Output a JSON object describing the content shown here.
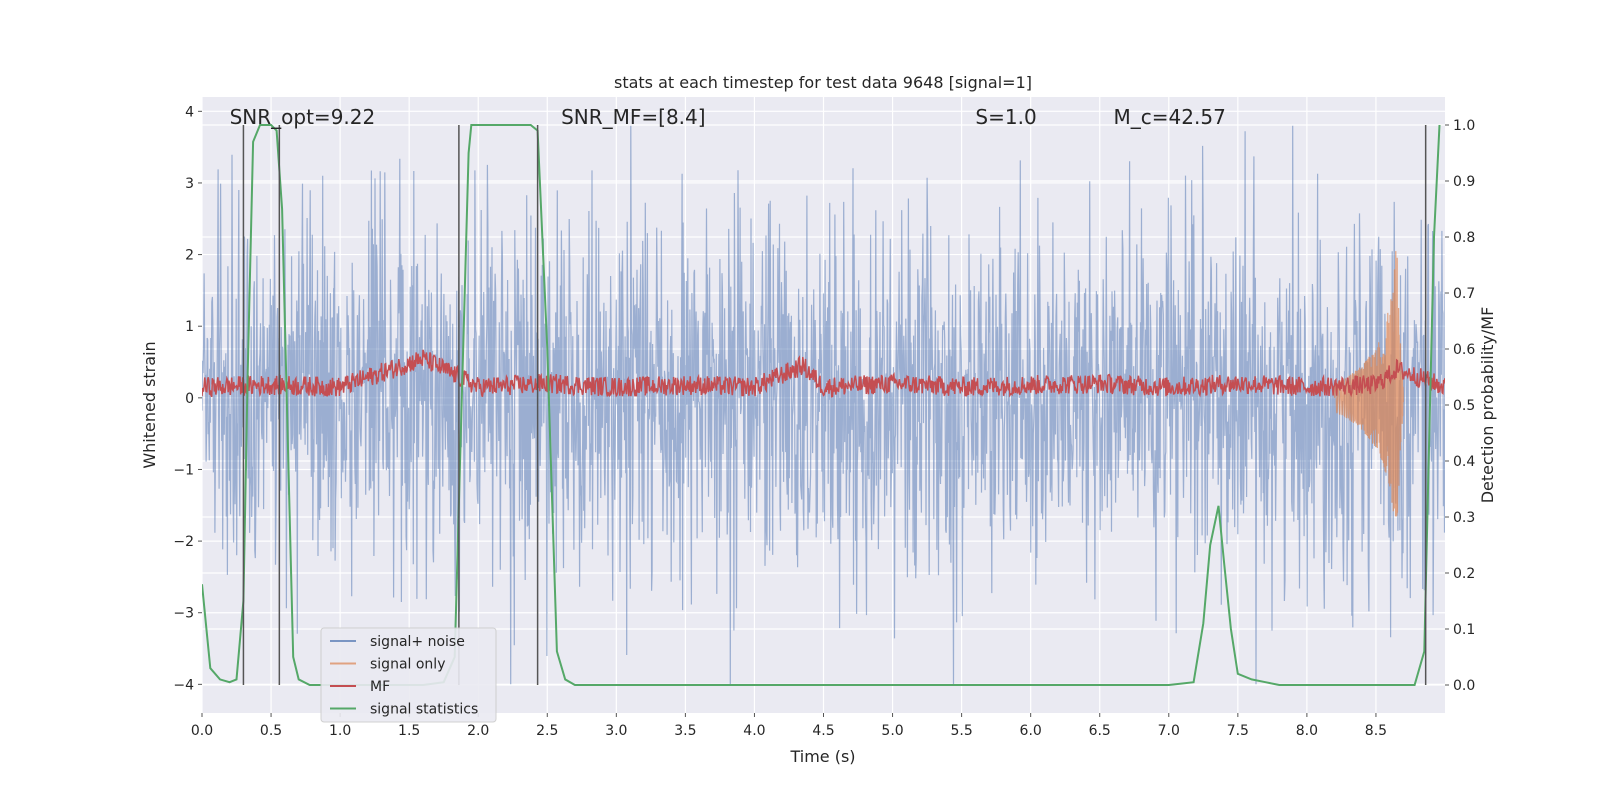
{
  "chart_data": {
    "type": "line",
    "title": "stats at each timestep for test data 9648 [signal=1]",
    "xlabel": "Time (s)",
    "ylabel": "Whitened strain",
    "y2label": "Detection probability/MF",
    "xlim": [
      0.0,
      9.0
    ],
    "ylim": [
      -4.4,
      4.2
    ],
    "y2lim": [
      -0.05,
      1.05
    ],
    "xticks": [
      0.0,
      0.5,
      1.0,
      1.5,
      2.0,
      2.5,
      3.0,
      3.5,
      4.0,
      4.5,
      5.0,
      5.5,
      6.0,
      6.5,
      7.0,
      7.5,
      8.0,
      8.5
    ],
    "xtick_labels": [
      "0.0",
      "0.5",
      "1.0",
      "1.5",
      "2.0",
      "2.5",
      "3.0",
      "3.5",
      "4.0",
      "4.5",
      "5.0",
      "5.5",
      "6.0",
      "6.5",
      "7.0",
      "7.5",
      "8.0",
      "8.5"
    ],
    "yticks": [
      -4,
      -3,
      -2,
      -1,
      0,
      1,
      2,
      3,
      4
    ],
    "ytick_labels": [
      "−4",
      "−3",
      "−2",
      "−1",
      "0",
      "1",
      "2",
      "3",
      "4"
    ],
    "y2ticks": [
      0.0,
      0.1,
      0.2,
      0.3,
      0.4,
      0.5,
      0.6,
      0.7,
      0.8,
      0.9,
      1.0
    ],
    "y2tick_labels": [
      "0.0",
      "0.1",
      "0.2",
      "0.3",
      "0.4",
      "0.5",
      "0.6",
      "0.7",
      "0.8",
      "0.9",
      "1.0"
    ],
    "grid": true,
    "legend_position": "lower-left",
    "annotations": [
      {
        "id": "snr-opt",
        "text": "SNR_opt=9.22",
        "x": 0.2
      },
      {
        "id": "snr-mf",
        "text": "SNR_MF=[8.4]",
        "x": 2.6
      },
      {
        "id": "s-value",
        "text": "S=1.0",
        "x": 5.6
      },
      {
        "id": "mc-value",
        "text": "M_c=42.57",
        "x": 6.6
      }
    ],
    "vertical_lines": [
      0.3,
      0.56,
      1.86,
      2.43,
      8.86
    ],
    "series": [
      {
        "name": "signal+ noise",
        "color": "#4c72b0",
        "description_points": "noise band roughly between -2.5 and 3 whitened strain across all times"
      },
      {
        "name": "signal only",
        "color": "#dd8452",
        "chirp_points": {
          "x": [
            8.2,
            8.3,
            8.4,
            8.5,
            8.55,
            8.6,
            8.63,
            8.65,
            8.67,
            8.7
          ],
          "amplitude": [
            0.2,
            0.3,
            0.45,
            0.7,
            0.9,
            1.3,
            1.7,
            2.2,
            1.0,
            0.1
          ]
        }
      },
      {
        "name": "MF",
        "color": "#c44e52",
        "x": [
          0.0,
          0.5,
          1.0,
          1.6,
          2.0,
          2.5,
          3.0,
          3.5,
          4.0,
          4.35,
          4.5,
          5.0,
          5.5,
          6.0,
          6.5,
          7.0,
          7.5,
          8.0,
          8.5,
          8.65,
          9.0
        ],
        "y": [
          0.15,
          0.18,
          0.15,
          0.55,
          0.15,
          0.2,
          0.15,
          0.18,
          0.15,
          0.45,
          0.15,
          0.2,
          0.15,
          0.18,
          0.2,
          0.15,
          0.2,
          0.15,
          0.18,
          0.4,
          0.15
        ]
      },
      {
        "name": "signal statistics",
        "color": "#55a868",
        "x": [
          0.0,
          0.06,
          0.13,
          0.2,
          0.25,
          0.3,
          0.33,
          0.37,
          0.42,
          0.5,
          0.54,
          0.58,
          0.62,
          0.66,
          0.7,
          0.78,
          0.88,
          1.05,
          1.2,
          1.4,
          1.6,
          1.75,
          1.83,
          1.88,
          1.93,
          1.95,
          2.0,
          2.3,
          2.38,
          2.43,
          2.5,
          2.57,
          2.63,
          2.7,
          2.8,
          3.0,
          4.0,
          5.0,
          6.0,
          7.0,
          7.18,
          7.25,
          7.3,
          7.36,
          7.4,
          7.45,
          7.5,
          7.6,
          7.7,
          7.8,
          8.0,
          8.5,
          8.78,
          8.85,
          8.88,
          8.92,
          8.96
        ],
        "y": [
          0.18,
          0.03,
          0.01,
          0.005,
          0.01,
          0.15,
          0.55,
          0.97,
          1.0,
          1.0,
          0.99,
          0.85,
          0.45,
          0.05,
          0.01,
          0.0,
          0.0,
          0.0,
          0.0,
          0.0,
          0.0,
          0.005,
          0.05,
          0.5,
          0.95,
          1.0,
          1.0,
          1.0,
          1.0,
          0.99,
          0.6,
          0.06,
          0.01,
          0.0,
          0.0,
          0.0,
          0.0,
          0.0,
          0.0,
          0.0,
          0.005,
          0.11,
          0.25,
          0.32,
          0.22,
          0.1,
          0.02,
          0.01,
          0.005,
          0.0,
          0.0,
          0.0,
          0.0,
          0.06,
          0.38,
          0.8,
          1.0
        ]
      }
    ]
  }
}
